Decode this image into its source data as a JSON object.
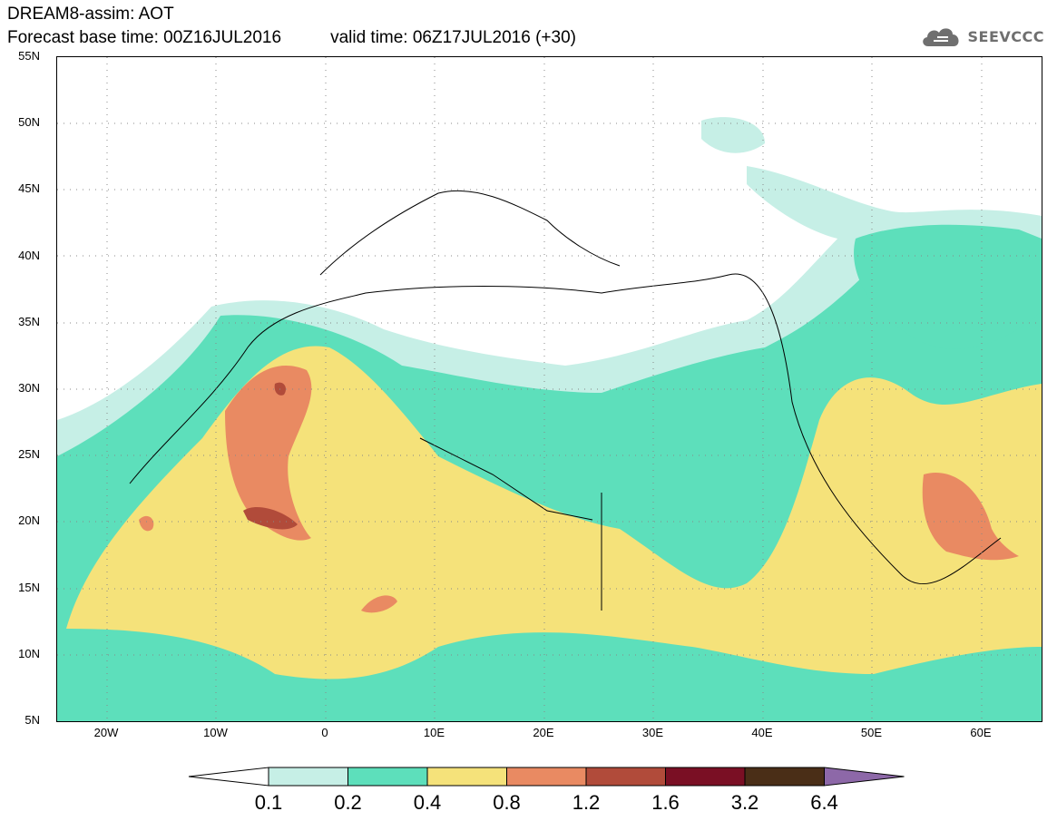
{
  "header": {
    "title": "DREAM8-assim: AOT",
    "base_time": "Forecast base time: 00Z16JUL2016",
    "valid_time": "valid time: 06Z17JUL2016 (+30)",
    "logo_text": "SEEVCCC"
  },
  "map": {
    "lon_labels": [
      "20W",
      "10W",
      "0",
      "10E",
      "20E",
      "30E",
      "40E",
      "50E",
      "60E"
    ],
    "lat_labels": [
      "55N",
      "50N",
      "45N",
      "40N",
      "35N",
      "30N",
      "25N",
      "20N",
      "15N",
      "10N",
      "5N"
    ],
    "lon_range": [
      -25,
      65
    ],
    "lat_range": [
      5,
      55
    ]
  },
  "colorbar": {
    "levels": [
      "0.1",
      "0.2",
      "0.4",
      "0.8",
      "1.2",
      "1.6",
      "3.2",
      "6.4"
    ],
    "colors": [
      "#ffffff",
      "#c6efe6",
      "#5ddfbb",
      "#f5e27a",
      "#e98a62",
      "#b14b3a",
      "#7a0f24",
      "#4a2e17",
      "#8d68a8"
    ]
  }
}
